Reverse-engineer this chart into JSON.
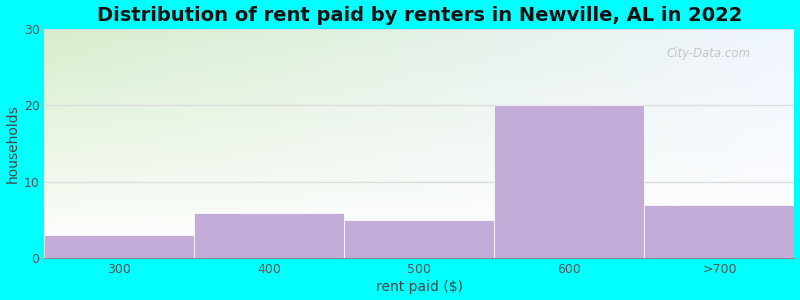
{
  "title": "Distribution of rent paid by renters in Newville, AL in 2022",
  "xlabel": "rent paid ($)",
  "ylabel": "households",
  "bar_lefts": [
    0,
    1,
    2,
    3,
    4
  ],
  "bar_widths": [
    1,
    1,
    1,
    1,
    1
  ],
  "values": [
    3,
    6,
    5,
    20,
    7
  ],
  "tick_positions": [
    0.5,
    1.5,
    2.5,
    3.5,
    4.5
  ],
  "tick_labels": [
    "300",
    "400",
    "500",
    "600",
    ">700"
  ],
  "bar_color": "#c3add8",
  "ylim": [
    0,
    30
  ],
  "xlim": [
    0,
    5
  ],
  "yticks": [
    0,
    10,
    20,
    30
  ],
  "background_outer": "#00FFFF",
  "grad_top_color": "#d8edcc",
  "grad_bottom_color": "#ffffff",
  "grad_right_color": "#e8f0fa",
  "title_fontsize": 14,
  "axis_label_fontsize": 10,
  "tick_fontsize": 9,
  "grid_color": "#dddddd",
  "watermark_text": "City-Data.com"
}
